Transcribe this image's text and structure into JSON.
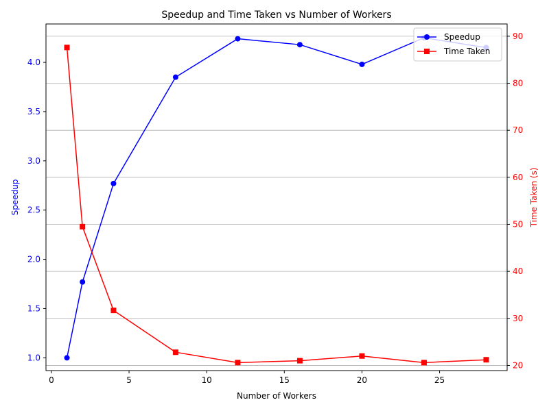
{
  "chart_data": {
    "type": "line",
    "title": "Speedup and Time Taken vs Number of Workers",
    "xlabel": "Number of Workers",
    "ylabel_left": "Speedup",
    "ylabel_right": "Time Taken (s)",
    "xlim": [
      -0.35,
      29.35
    ],
    "ylim_left": [
      0.87,
      4.39
    ],
    "ylim_right": [
      18.9,
      92.6
    ],
    "x_ticks": [
      0,
      5,
      10,
      15,
      20,
      25
    ],
    "y_left_ticks": [
      1.0,
      1.5,
      2.0,
      2.5,
      3.0,
      3.5,
      4.0
    ],
    "y_right_ticks": [
      20,
      30,
      40,
      50,
      60,
      70,
      80,
      90
    ],
    "grid": "horizontal, right axis",
    "legend_position": "top-right",
    "colors": {
      "speedup": "#0000ff",
      "time": "#ff0000",
      "grid": "#b0b0b0"
    },
    "x": [
      1,
      2,
      4,
      8,
      12,
      16,
      20,
      24,
      28
    ],
    "series": [
      {
        "name": "Speedup",
        "axis": "left",
        "marker": "circle",
        "values": [
          1.0,
          1.77,
          2.77,
          3.85,
          4.24,
          4.18,
          3.98,
          4.25,
          4.15
        ]
      },
      {
        "name": "Time Taken",
        "axis": "right",
        "marker": "square",
        "values": [
          87.6,
          49.5,
          31.7,
          22.8,
          20.6,
          21.0,
          22.0,
          20.6,
          21.2
        ]
      }
    ]
  }
}
